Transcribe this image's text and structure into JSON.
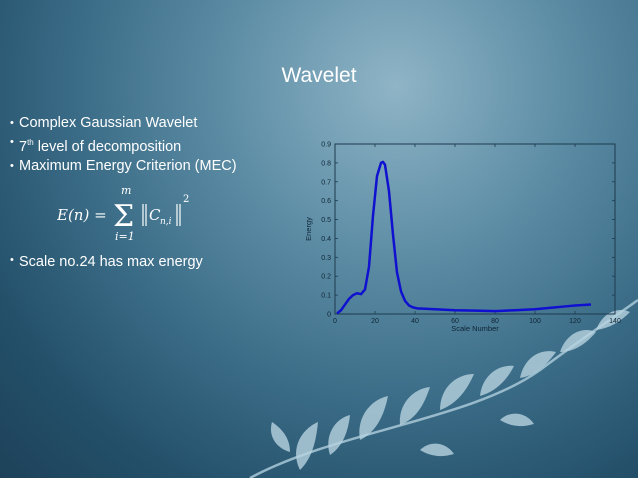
{
  "slide": {
    "title": "Wavelet",
    "bullets": {
      "b1": "Complex Gaussian Wavelet",
      "b2_pre": "7",
      "b2_sup": "th",
      "b2_post": " level of decomposition",
      "b3": "Maximum Energy Criterion (MEC)",
      "b4": "Scale no.24 has max energy"
    },
    "formula": {
      "lhs": "E(n) =",
      "sum_top": "m",
      "sum_bottom": "i=1",
      "term": "C",
      "sub": "n,i",
      "exp": "2"
    },
    "colors": {
      "curve": "#1010d0",
      "background": "#2f5f7c"
    }
  },
  "chart_data": {
    "type": "line",
    "title": "",
    "xlabel": "Scale Number",
    "ylabel": "Energy",
    "xlim": [
      0,
      140
    ],
    "ylim": [
      0,
      0.9
    ],
    "xticks": [
      0,
      20,
      40,
      60,
      80,
      100,
      120,
      140
    ],
    "yticks": [
      0,
      0.1,
      0.2,
      0.3,
      0.4,
      0.5,
      0.6,
      0.7,
      0.8,
      0.9
    ],
    "grid": false,
    "series": [
      {
        "name": "",
        "x": [
          1,
          3,
          5,
          7,
          9,
          11,
          13,
          15,
          17,
          19,
          21,
          23,
          24,
          25,
          27,
          29,
          31,
          33,
          35,
          37,
          39,
          41,
          45,
          50,
          60,
          70,
          80,
          90,
          100,
          110,
          115,
          120,
          128
        ],
        "values": [
          0.003,
          0.02,
          0.05,
          0.08,
          0.1,
          0.11,
          0.105,
          0.13,
          0.25,
          0.52,
          0.73,
          0.8,
          0.805,
          0.79,
          0.65,
          0.42,
          0.22,
          0.12,
          0.07,
          0.045,
          0.035,
          0.03,
          0.028,
          0.025,
          0.02,
          0.018,
          0.015,
          0.02,
          0.025,
          0.035,
          0.04,
          0.045,
          0.05
        ]
      }
    ]
  }
}
